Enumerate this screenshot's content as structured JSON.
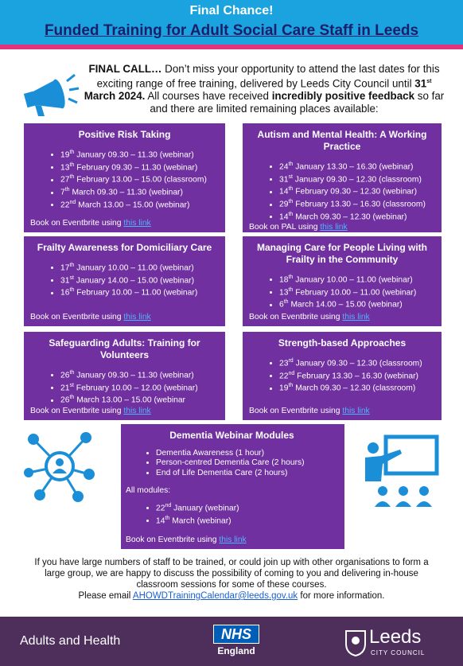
{
  "header": {
    "kicker": "Final Chance!",
    "title": "Funded Training for Adult Social Care Staff in Leeds"
  },
  "intro": [
    {
      "text": "FINAL CALL…",
      "bold": true
    },
    {
      "text": " Don’t miss your opportunity to attend the last dates for this exciting range of free training, delivered by Leeds City Council until "
    },
    {
      "text": "31",
      "bold": true
    },
    {
      "text": "st",
      "bold": true,
      "sup": true
    },
    {
      "text": " March 2024.",
      "bold": true
    },
    {
      "text": " All courses have received "
    },
    {
      "text": "incredibly positive feedback",
      "bold": true
    },
    {
      "text": " so far and there are limited remaining places available:"
    }
  ],
  "courses": [
    {
      "title": "Positive Risk Taking",
      "sessions": [
        {
          "day": "19",
          "sup": "th",
          "text": "January 09.30 – 11.30 (webinar)"
        },
        {
          "day": "13",
          "sup": "th",
          "text": "February 09.30 – 11.30 (webinar)"
        },
        {
          "day": "27",
          "sup": "th",
          "text": "February 13.00 – 15.00 (classroom)"
        },
        {
          "day": "7",
          "sup": "th",
          "text": "March 09.30 – 11.30 (webinar)"
        },
        {
          "day": "22",
          "sup": "nd",
          "text": "March 13.00 – 15.00 (webinar)"
        }
      ],
      "booking": "Book on Eventbrite using",
      "link": "this link"
    },
    {
      "title": "Autism and Mental Health: A Working Practice",
      "sessions": [
        {
          "day": "24",
          "sup": "th",
          "text": "January 13.30 – 16.30 (webinar)"
        },
        {
          "day": "31",
          "sup": "st",
          "text": "January 09.30 – 12.30 (classroom)"
        },
        {
          "day": "14",
          "sup": "th",
          "text": "February 09.30 – 12.30 (webinar)"
        },
        {
          "day": "29",
          "sup": "th",
          "text": "February 13.30 – 16.30 (classroom)"
        },
        {
          "day": "14",
          "sup": "th",
          "text": "March 09.30 – 12.30 (webinar)"
        }
      ],
      "booking": "Book on PAL using",
      "link": "this link"
    },
    {
      "title": "Frailty Awareness for Domiciliary Care",
      "sessions": [
        {
          "day": "17",
          "sup": "th",
          "text": "January 10.00 – 11.00 (webinar)"
        },
        {
          "day": "31",
          "sup": "st",
          "text": "January 14.00 – 15.00 (webinar)"
        },
        {
          "day": "16",
          "sup": "th",
          "text": "February 10.00 – 11.00 (webinar)"
        }
      ],
      "booking": "Book on Eventbrite using",
      "link": "this link"
    },
    {
      "title": "Managing Care for People Living with Frailty in the Community",
      "sessions": [
        {
          "day": "18",
          "sup": "th",
          "text": "January 10.00 – 11.00 (webinar)"
        },
        {
          "day": "13",
          "sup": "th",
          "text": "February 10.00 – 11.00 (webinar)"
        },
        {
          "day": "6",
          "sup": "th",
          "text": "March 14.00 – 15.00 (webinar)"
        }
      ],
      "booking": "Book on Eventbrite using",
      "link": "this link"
    },
    {
      "title": "Safeguarding Adults: Training for Volunteers",
      "sessions": [
        {
          "day": "26",
          "sup": "th",
          "text": "January 09.30 – 11.30 (webinar)"
        },
        {
          "day": "21",
          "sup": "st",
          "text": "February 10.00 – 12.00 (webinar)"
        },
        {
          "day": "26",
          "sup": "th",
          "text": "March 13.00 – 15.00 (webinar"
        }
      ],
      "booking": "Book on Eventbrite using",
      "link": "this link"
    },
    {
      "title": "Strength-based Approaches",
      "sessions": [
        {
          "day": "23",
          "sup": "rd",
          "text": "January 09.30 – 12.30 (classroom)"
        },
        {
          "day": "22",
          "sup": "nd",
          "text": "February 13.30 – 16.30 (webinar)"
        },
        {
          "day": "19",
          "sup": "th",
          "text": "March 09.30 – 12.30 (classroom)"
        }
      ],
      "booking": "Book on Eventbrite using",
      "link": "this link"
    }
  ],
  "dementia": {
    "title": "Dementia Webinar Modules",
    "modules": [
      "Dementia Awareness (1 hour)",
      "Person-centred Dementia Care (2 hours)",
      "End of Life Dementia Care (2 hours)"
    ],
    "all_label": "All modules:",
    "sessions": [
      {
        "day": "22",
        "sup": "nd",
        "text": "January (webinar)"
      },
      {
        "day": "14",
        "sup": "th",
        "text": "March (webinar)"
      }
    ],
    "booking": "Book on Eventbrite using",
    "link": "this link"
  },
  "contact": {
    "text": "If you have large numbers of staff to be trained, or could join up with other organisations to form a large group, we are happy to discuss the possibility of coming to you and delivering in-house classroom sessions for some of these courses.",
    "email_prefix": "Please email",
    "email": "AHOWDTrainingCalendar@leeds.gov.uk",
    "email_suffix": "for more information."
  },
  "footer": {
    "left": "Adults and Health",
    "nhs": "NHS",
    "nhs_sub": "England",
    "leeds": "Leeds",
    "leeds_sub": "CITY COUNCIL"
  }
}
